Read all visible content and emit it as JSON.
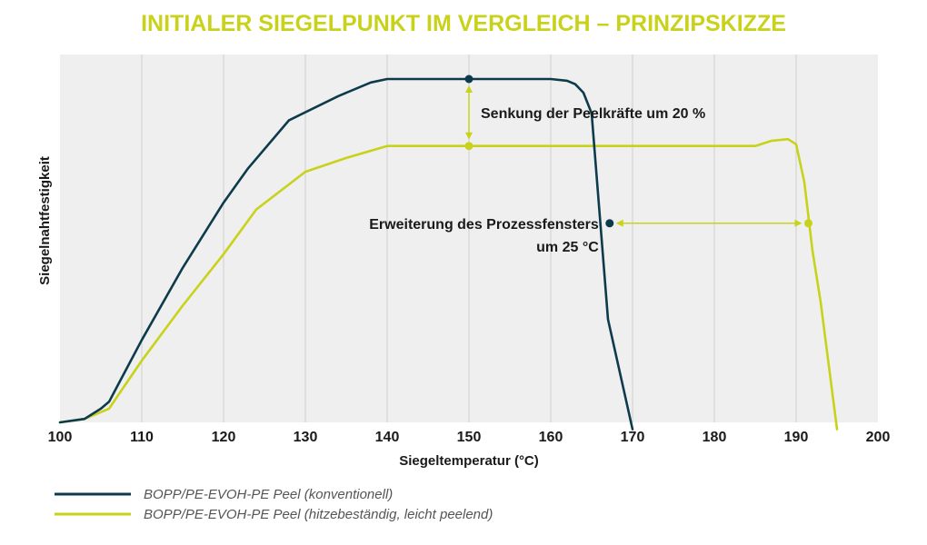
{
  "chart_data": {
    "type": "line",
    "title": "INITIALER SIEGELPUNKT IM VERGLEICH – PRINZIPSKIZZE",
    "xlabel": "Siegeltemperatur (°C)",
    "ylabel": "Siegelnahtfestigkeit",
    "xlim": [
      100,
      200
    ],
    "ylim": [
      0,
      1
    ],
    "x_ticks": [
      "100",
      "110",
      "120",
      "130",
      "140",
      "150",
      "160",
      "170",
      "180",
      "190",
      "200"
    ],
    "grid": "vertical",
    "legend_position": "bottom-left",
    "series": [
      {
        "name": "BOPP/PE-EVOH-PE Peel (konventionell)",
        "color": "#0d3b4c",
        "points": [
          [
            100,
            0
          ],
          [
            103,
            0.01
          ],
          [
            105,
            0.04
          ],
          [
            106,
            0.06
          ],
          [
            110,
            0.24
          ],
          [
            115,
            0.45
          ],
          [
            120,
            0.64
          ],
          [
            123,
            0.74
          ],
          [
            128,
            0.88
          ],
          [
            134,
            0.95
          ],
          [
            138,
            0.99
          ],
          [
            140,
            1.0
          ],
          [
            150,
            1.0
          ],
          [
            160,
            1.0
          ],
          [
            162,
            0.995
          ],
          [
            163,
            0.985
          ],
          [
            164,
            0.96
          ],
          [
            165,
            0.9
          ],
          [
            166,
            0.6
          ],
          [
            167,
            0.3
          ],
          [
            170,
            -0.02
          ]
        ]
      },
      {
        "name": "BOPP/PE-EVOH-PE Peel (hitzebeständig, leicht peelend)",
        "color": "#c9d21a",
        "points": [
          [
            100,
            0
          ],
          [
            103,
            0.01
          ],
          [
            106,
            0.04
          ],
          [
            110,
            0.18
          ],
          [
            115,
            0.34
          ],
          [
            120,
            0.49
          ],
          [
            124,
            0.62
          ],
          [
            130,
            0.73
          ],
          [
            135,
            0.77
          ],
          [
            140,
            0.805
          ],
          [
            150,
            0.805
          ],
          [
            160,
            0.805
          ],
          [
            170,
            0.805
          ],
          [
            180,
            0.805
          ],
          [
            185,
            0.805
          ],
          [
            187,
            0.82
          ],
          [
            189,
            0.825
          ],
          [
            190,
            0.81
          ],
          [
            191,
            0.7
          ],
          [
            192,
            0.5
          ],
          [
            193,
            0.35
          ],
          [
            195,
            -0.02
          ]
        ]
      }
    ],
    "annotations": [
      {
        "type": "vertical-arrow",
        "x": 150,
        "y_from": 1.0,
        "y_to": 0.805,
        "label": "Senkung der Peelkräfte um 20 %"
      },
      {
        "type": "horizontal-arrow",
        "y": 0.58,
        "x_from": 167.2,
        "x_to": 191.5,
        "label_line1": "Erweiterung des Prozessfensters",
        "label_line2": "um 25 °C"
      }
    ]
  }
}
